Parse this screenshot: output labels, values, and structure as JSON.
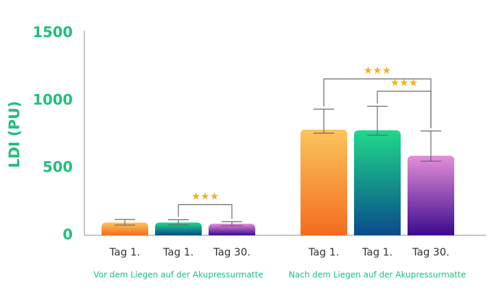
{
  "chart_data": {
    "type": "bar",
    "y_label": "LDI (PU)",
    "categories": [
      "Vor dem Liegen auf der Akupressurmatte",
      "Nach dem Liegen auf der Akupressurmatte"
    ],
    "series": [
      {
        "name": "Tag 1.",
        "gradient": [
          "#fcc45e",
          "#f46c1e"
        ],
        "values": [
          95,
          783
        ],
        "errors_plus": [
          22,
          152
        ],
        "errors_minus": [
          19,
          26
        ]
      },
      {
        "name": "Tag 1.",
        "gradient": [
          "#1fd98a",
          "#0b4a8c"
        ],
        "values": [
          95,
          778
        ],
        "errors_plus": [
          20,
          178
        ],
        "errors_minus": [
          18,
          36
        ]
      },
      {
        "name": "Tag 30.",
        "gradient": [
          "#e58fd8",
          "#3a0a8e"
        ],
        "values": [
          86,
          590
        ],
        "errors_plus": [
          15,
          183
        ],
        "errors_minus": [
          14,
          41
        ]
      }
    ],
    "significance": [
      {
        "group": 0,
        "from": 1,
        "to": 2,
        "label": "★★★"
      },
      {
        "group": 1,
        "from": 1,
        "to": 2,
        "label": "★★★"
      },
      {
        "group": 1,
        "from": 0,
        "to": 2,
        "label": "★★★"
      }
    ],
    "ylim": [
      0,
      1500
    ],
    "yticks": [
      0,
      500,
      1000,
      1500
    ],
    "axis_color": "#1fbf7e",
    "error_color": "#666666",
    "star_color": "#f5b11c"
  }
}
